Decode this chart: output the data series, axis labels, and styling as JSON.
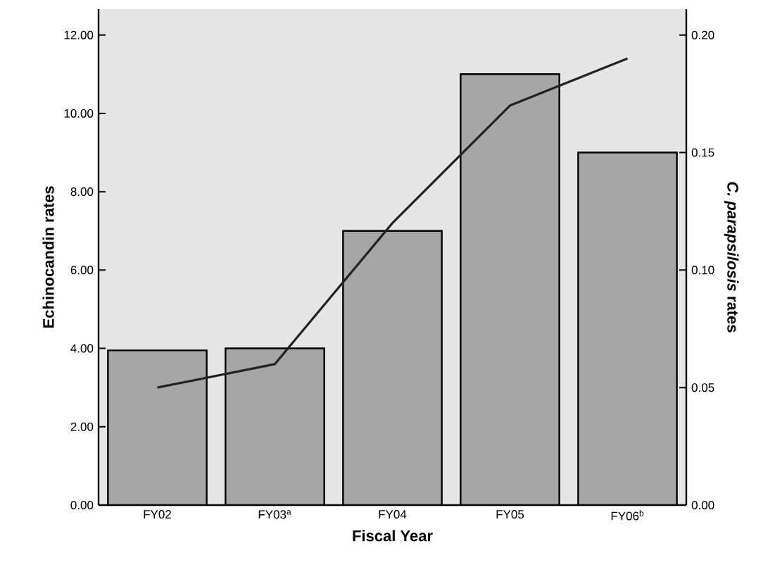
{
  "chart_data": {
    "type": "bar",
    "xlabel": "Fiscal Year",
    "ylabel": "Echinocandin rates",
    "y2label": "*C. parapsilosis* rates",
    "categories": [
      "FY02",
      "FY03$^{a}$",
      "FY04",
      "FY05",
      "FY06$^{b}$"
    ],
    "series": [
      {
        "type": "bar",
        "color": "#a6a6a6",
        "values": [
          3.95,
          4.0,
          7.0,
          11.0,
          9.0
        ]
      },
      {
        "type": "line",
        "axis": "y2",
        "color": "#222222",
        "values": [
          0.05,
          0.06,
          0.12,
          0.17,
          0.19
        ]
      }
    ],
    "ylim": [
      0,
      12.66
    ],
    "yticks": [
      {
        "value": 0,
        "label": "0.00"
      },
      {
        "value": 2,
        "label": "2.00"
      },
      {
        "value": 4,
        "label": "4.00"
      },
      {
        "value": 6,
        "label": "6.00"
      },
      {
        "value": 8,
        "label": "8.00"
      },
      {
        "value": 10,
        "label": "10.00"
      },
      {
        "value": 12,
        "label": "12.00"
      }
    ],
    "y2lim": [
      0,
      0.211
    ],
    "y2ticks": [
      {
        "value": 0,
        "label": "0.00"
      },
      {
        "value": 0.05,
        "label": "0.05"
      },
      {
        "value": 0.1,
        "label": "0.10"
      },
      {
        "value": 0.15,
        "label": "0.15"
      },
      {
        "value": 0.2,
        "label": "0.20"
      }
    ]
  }
}
